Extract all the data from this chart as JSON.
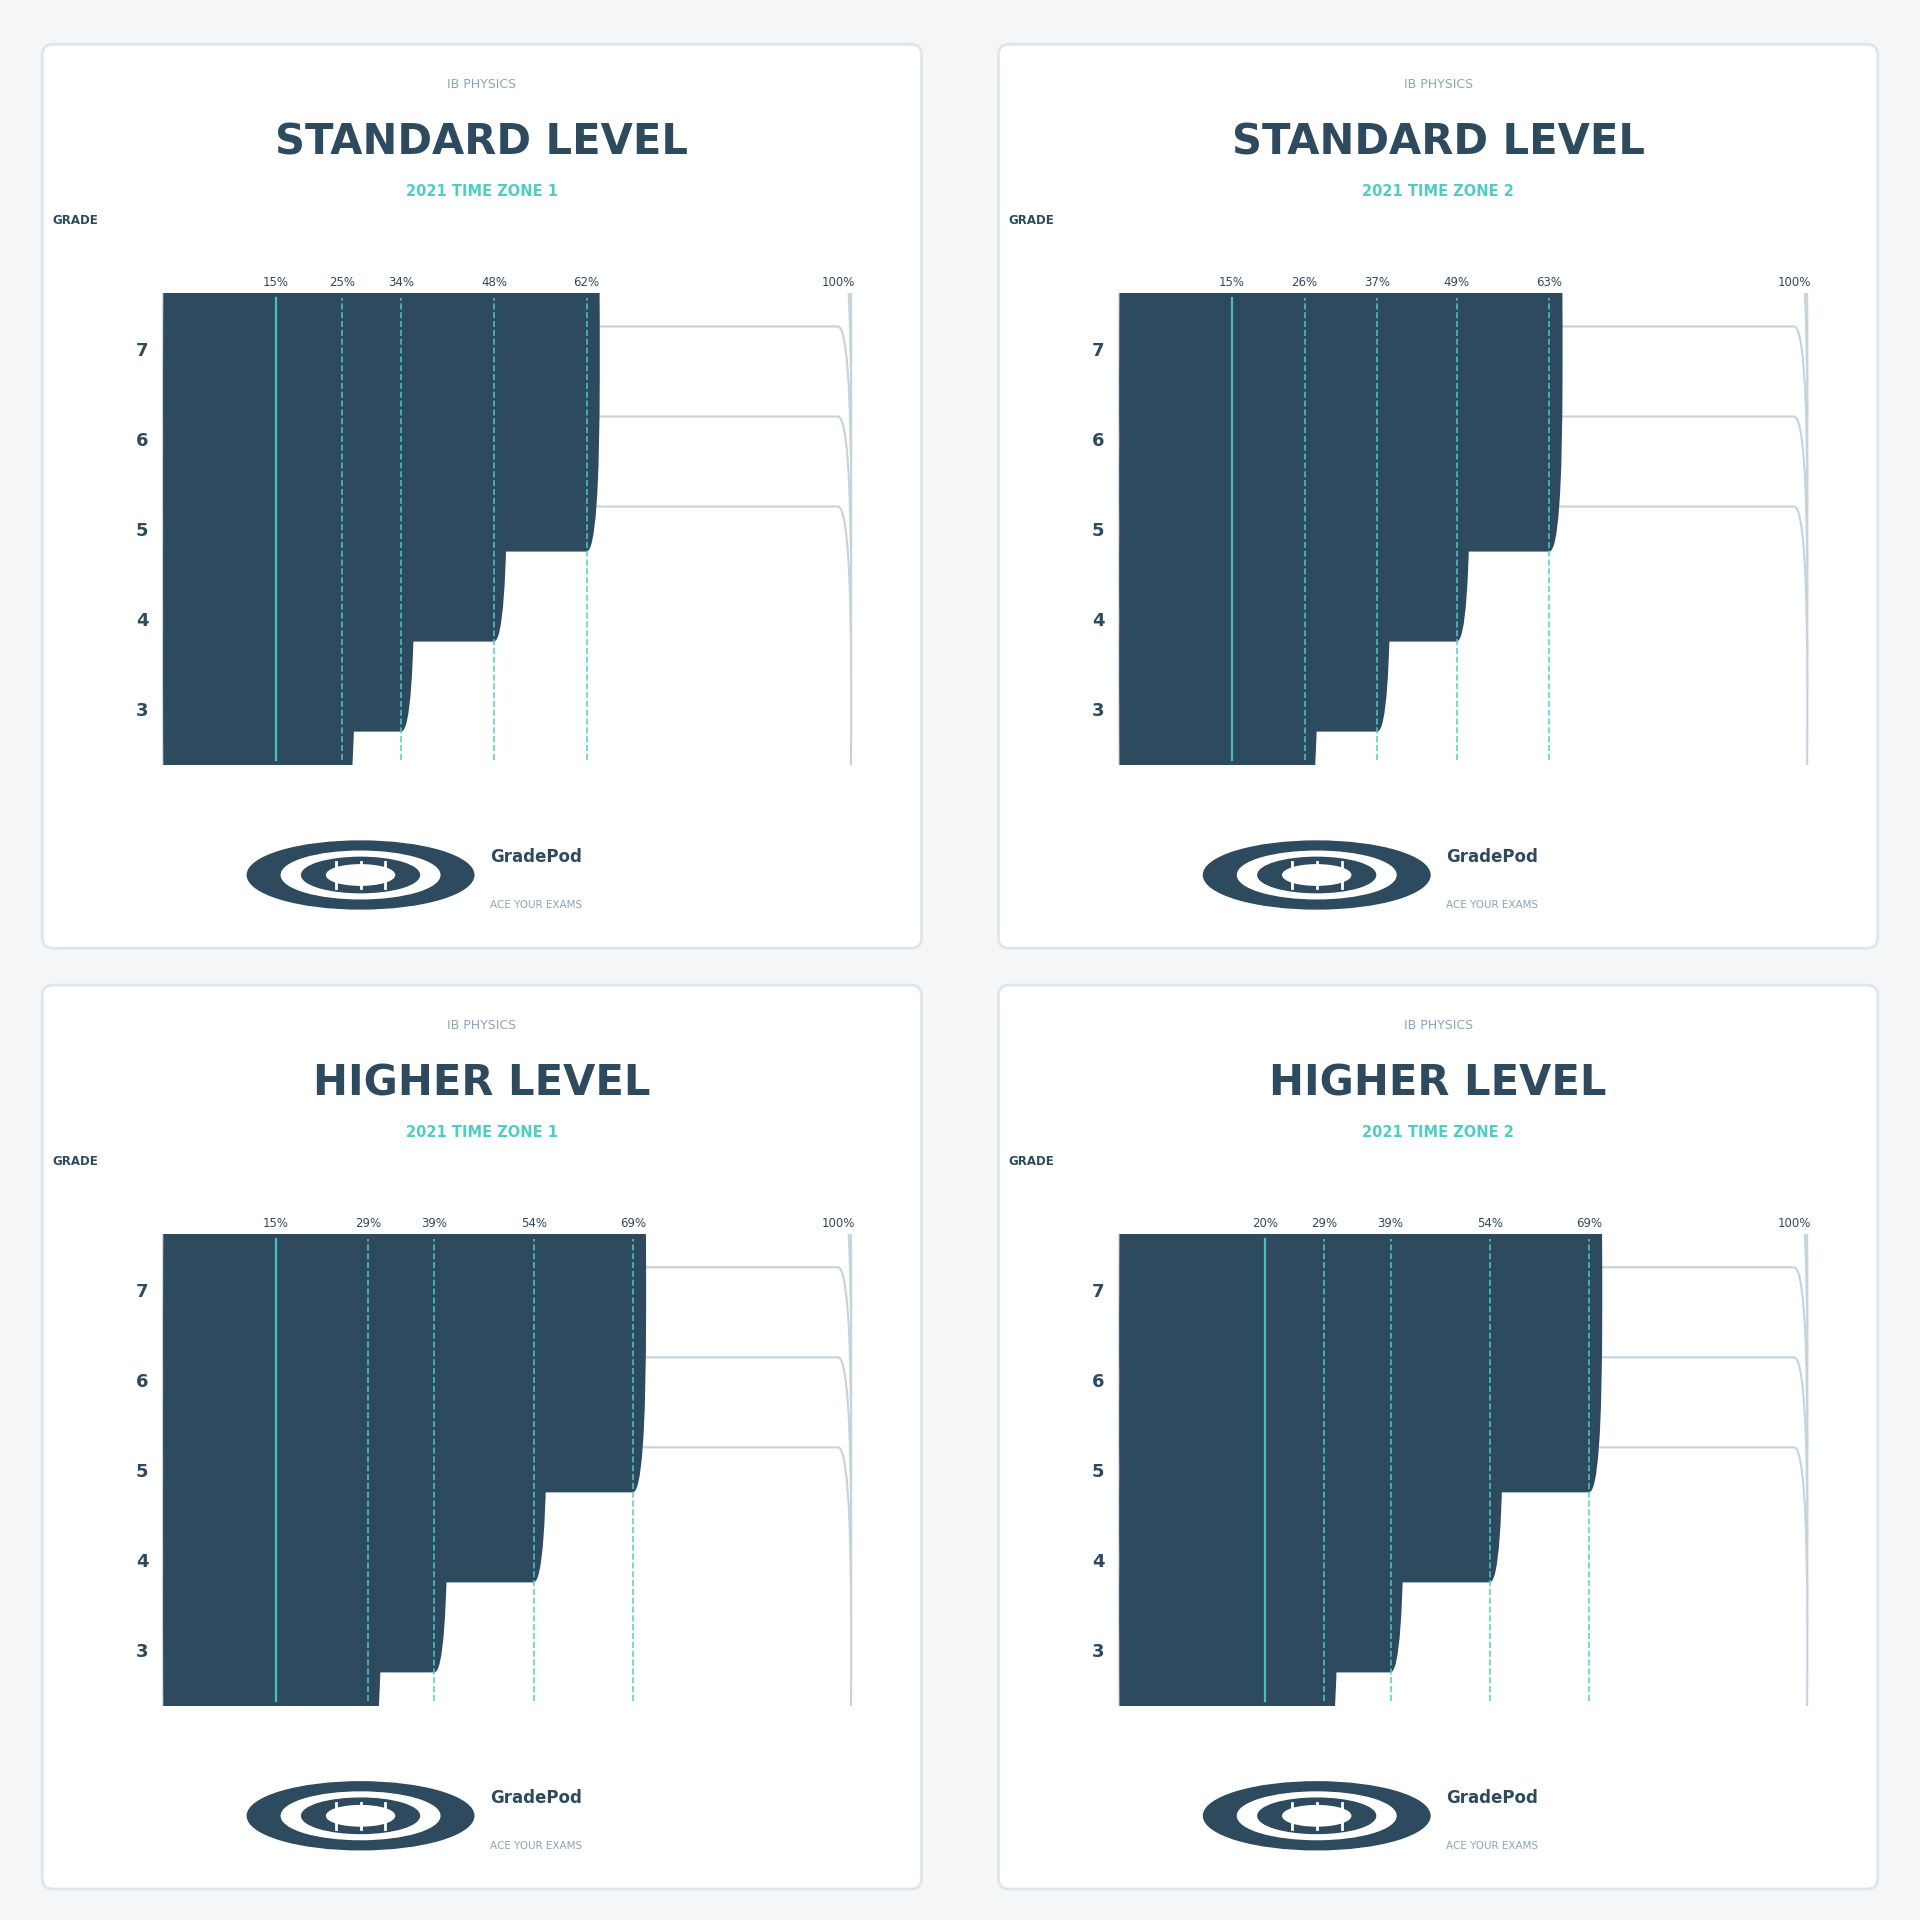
{
  "panels": [
    {
      "subtitle": "IB PHYSICS",
      "title": "STANDARD LEVEL",
      "zone": "2021 TIME ZONE 1",
      "grades": [
        7,
        6,
        5,
        4,
        3
      ],
      "bar_values": [
        62,
        48,
        34,
        25,
        15
      ],
      "vlines": [
        15,
        25,
        34,
        48,
        62
      ],
      "vline_labels": [
        "15%",
        "25%",
        "34%",
        "48%",
        "62%",
        "100%"
      ]
    },
    {
      "subtitle": "IB PHYSICS",
      "title": "STANDARD LEVEL",
      "zone": "2021 TIME ZONE 2",
      "grades": [
        7,
        6,
        5,
        4,
        3
      ],
      "bar_values": [
        63,
        49,
        37,
        26,
        15
      ],
      "vlines": [
        15,
        26,
        37,
        49,
        63
      ],
      "vline_labels": [
        "15%",
        "26%",
        "37%",
        "49%",
        "63%",
        "100%"
      ]
    },
    {
      "subtitle": "IB PHYSICS",
      "title": "HIGHER LEVEL",
      "zone": "2021 TIME ZONE 1",
      "grades": [
        7,
        6,
        5,
        4,
        3
      ],
      "bar_values": [
        69,
        54,
        39,
        29,
        15
      ],
      "vlines": [
        15,
        29,
        39,
        54,
        69
      ],
      "vline_labels": [
        "15%",
        "29%",
        "39%",
        "54%",
        "69%",
        "100%"
      ]
    },
    {
      "subtitle": "IB PHYSICS",
      "title": "HIGHER LEVEL",
      "zone": "2021 TIME ZONE 2",
      "grades": [
        7,
        6,
        5,
        4,
        3
      ],
      "bar_values": [
        69,
        54,
        39,
        29,
        20
      ],
      "vlines": [
        20,
        29,
        39,
        54,
        69
      ],
      "vline_labels": [
        "20%",
        "29%",
        "39%",
        "54%",
        "69%",
        "100%"
      ]
    }
  ],
  "bar_color": "#2e4a5f",
  "bar_border_color": "#c5d3dc",
  "vline_color": "#4ecdc4",
  "background_color": "#f4f6f8",
  "panel_bg": "#ffffff",
  "text_dark": "#2e4a5f",
  "text_cyan": "#4ecdc4",
  "text_gray": "#8aa5b8",
  "grade_label": "GRADE",
  "logo_text": "GradePod",
  "logo_sub": "ACE YOUR EXAMS"
}
